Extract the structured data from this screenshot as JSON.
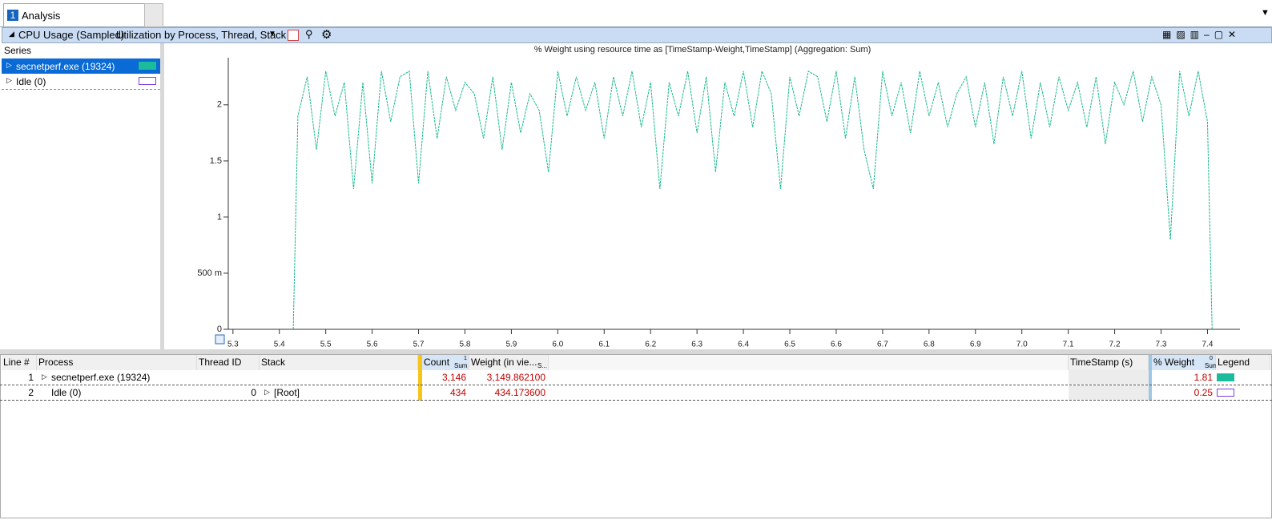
{
  "tab": {
    "number": "1",
    "label": "Analysis"
  },
  "panel": {
    "title": "CPU Usage (Sampled)",
    "view": "Utilization by Process, Thread, Stack"
  },
  "series_panel": {
    "header": "Series",
    "items": [
      {
        "name": "secnetperf.exe (19324)",
        "color": "#1abc9c"
      },
      {
        "name": "Idle (0)",
        "color": "#7b3fe4"
      }
    ]
  },
  "chart_data": {
    "type": "line",
    "title": "% Weight using resource time as [TimeStamp-Weight,TimeStamp] (Aggregation: Sum)",
    "x": [
      5.43,
      5.44,
      5.46,
      5.48,
      5.5,
      5.52,
      5.54,
      5.56,
      5.58,
      5.6,
      5.62,
      5.64,
      5.66,
      5.68,
      5.7,
      5.72,
      5.74,
      5.76,
      5.78,
      5.8,
      5.82,
      5.84,
      5.86,
      5.88,
      5.9,
      5.92,
      5.94,
      5.96,
      5.98,
      6.0,
      6.02,
      6.04,
      6.06,
      6.08,
      6.1,
      6.12,
      6.14,
      6.16,
      6.18,
      6.2,
      6.22,
      6.24,
      6.26,
      6.28,
      6.3,
      6.32,
      6.34,
      6.36,
      6.38,
      6.4,
      6.42,
      6.44,
      6.46,
      6.48,
      6.5,
      6.52,
      6.54,
      6.56,
      6.58,
      6.6,
      6.62,
      6.64,
      6.66,
      6.68,
      6.7,
      6.72,
      6.74,
      6.76,
      6.78,
      6.8,
      6.82,
      6.84,
      6.86,
      6.88,
      6.9,
      6.92,
      6.94,
      6.96,
      6.98,
      7.0,
      7.02,
      7.04,
      7.06,
      7.08,
      7.1,
      7.12,
      7.14,
      7.16,
      7.18,
      7.2,
      7.22,
      7.24,
      7.26,
      7.28,
      7.3,
      7.32,
      7.34,
      7.36,
      7.38,
      7.4,
      7.41
    ],
    "series": [
      {
        "name": "secnetperf.exe (19324)",
        "color": "#17b98e",
        "values": [
          0,
          1.9,
          2.25,
          1.6,
          2.3,
          1.9,
          2.2,
          1.25,
          2.2,
          1.3,
          2.3,
          1.85,
          2.25,
          2.3,
          1.3,
          2.3,
          1.7,
          2.25,
          1.95,
          2.2,
          2.1,
          1.7,
          2.25,
          1.6,
          2.2,
          1.75,
          2.1,
          1.95,
          1.4,
          2.3,
          1.9,
          2.25,
          1.95,
          2.2,
          1.7,
          2.25,
          1.9,
          2.3,
          1.8,
          2.2,
          1.25,
          2.2,
          1.9,
          2.3,
          1.75,
          2.25,
          1.4,
          2.2,
          1.9,
          2.3,
          1.8,
          2.3,
          2.1,
          1.25,
          2.25,
          1.9,
          2.3,
          2.25,
          1.85,
          2.3,
          1.7,
          2.25,
          1.6,
          1.25,
          2.3,
          1.9,
          2.2,
          1.75,
          2.3,
          1.9,
          2.2,
          1.8,
          2.1,
          2.25,
          1.8,
          2.2,
          1.65,
          2.25,
          1.9,
          2.3,
          1.7,
          2.2,
          1.8,
          2.25,
          1.95,
          2.2,
          1.8,
          2.25,
          1.65,
          2.2,
          2.0,
          2.3,
          1.85,
          2.25,
          2.0,
          0.8,
          2.3,
          1.9,
          2.3,
          1.85,
          0
        ]
      }
    ],
    "xlim": [
      5.29,
      7.47
    ],
    "xticks": [
      5.3,
      5.4,
      5.5,
      5.6,
      5.7,
      5.8,
      5.9,
      {
        "value": 6,
        "label": "6.0"
      },
      6.1,
      6.2,
      6.3,
      6.4,
      6.5,
      6.6,
      6.7,
      6.8,
      6.9,
      {
        "value": 7,
        "label": "7.0"
      },
      7.1,
      7.2,
      7.3,
      7.4
    ],
    "ylim": [
      0,
      2.42
    ],
    "yticks": [
      0,
      {
        "value": 0.5,
        "label": "500 m"
      },
      1,
      1.5,
      2
    ]
  },
  "table": {
    "columns": {
      "line": "Line #",
      "process": "Process",
      "thread": "Thread ID",
      "stack": "Stack",
      "count": "Count",
      "count_agg": "Sum",
      "count_sort": "1",
      "weight": "Weight (in vie...",
      "weight_agg": "S...",
      "timestamp": "TimeStamp (s)",
      "pct": "% Weight",
      "pct_agg": "Sum",
      "pct_sort": "0",
      "legend": "Legend"
    },
    "rows": [
      {
        "line": "1",
        "process": "secnetperf.exe (19324)",
        "count": "3,146",
        "weight": "3,149.862100",
        "pct": "1.81",
        "legend_color": "#1abc9c"
      },
      {
        "line": "2",
        "process": "Idle (0)",
        "thread": "0",
        "stack": "[Root]",
        "count": "434",
        "weight": "434.173600",
        "pct": "0.25",
        "legend_color": "#7b3fe4"
      }
    ]
  }
}
